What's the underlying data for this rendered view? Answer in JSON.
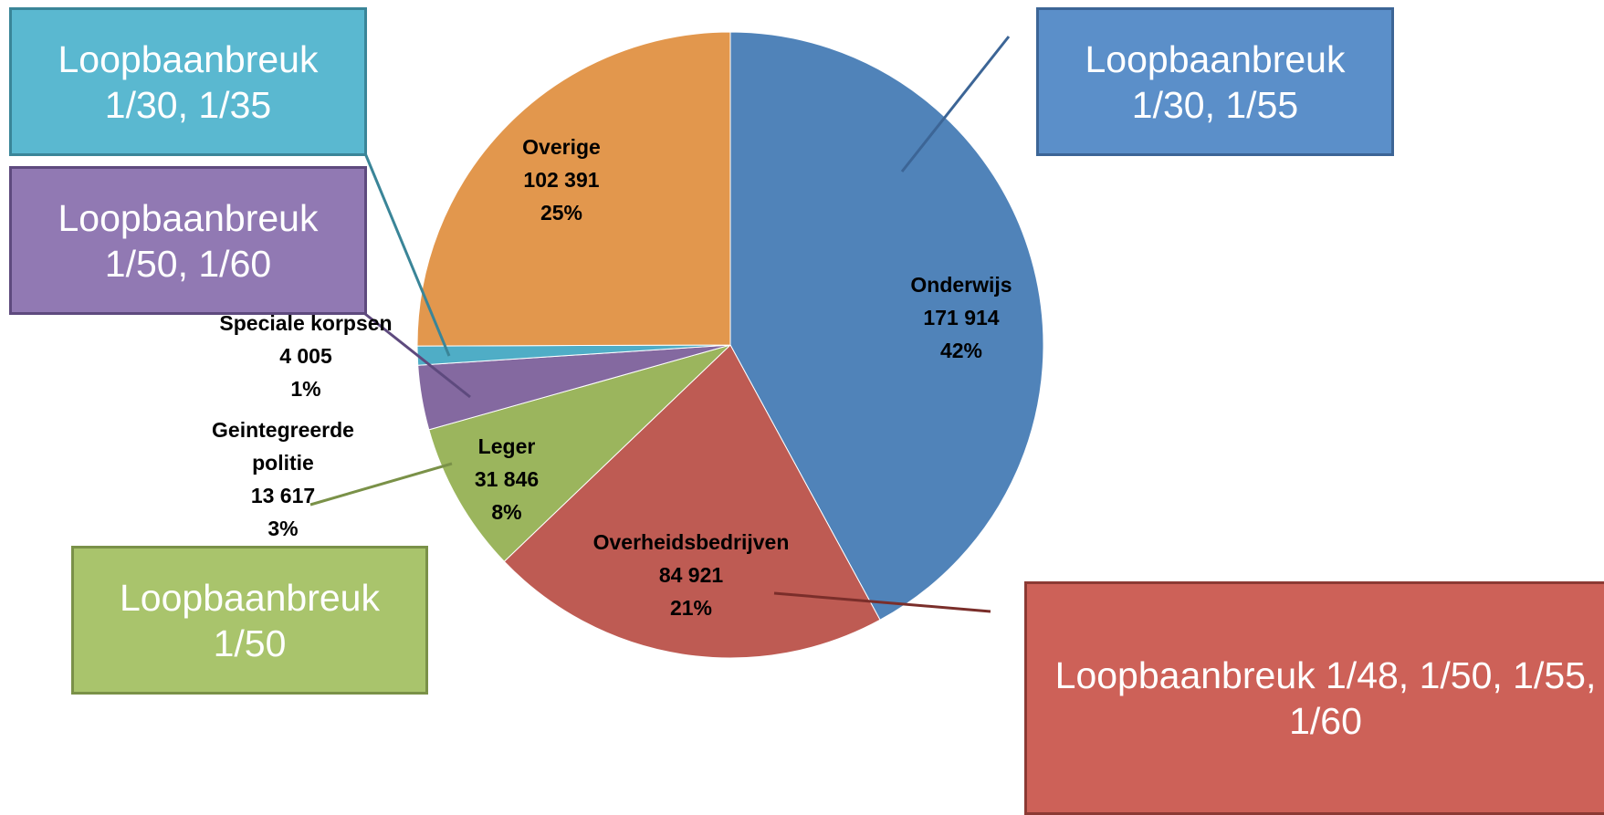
{
  "chart_data": {
    "type": "pie",
    "categories": [
      "Onderwijs",
      "Overheidsbedrijven",
      "Leger",
      "Geintegreerde politie",
      "Speciale korpsen",
      "Overige"
    ],
    "values": [
      171914,
      84921,
      31846,
      13617,
      4005,
      102391
    ],
    "value_labels": [
      "171 914",
      "84 921",
      "31 846",
      "13 617",
      "4 005",
      "102 391"
    ],
    "percentages": [
      42,
      21,
      8,
      3,
      1,
      25
    ],
    "percentage_labels": [
      "42%",
      "21%",
      "8%",
      "3%",
      "1%",
      "25%"
    ],
    "colors": [
      "#5083b9",
      "#be5b53",
      "#9bb55d",
      "#8469a0",
      "#4fadc6",
      "#e2974d"
    ],
    "annotations": [
      {
        "text": "Loopbaanbreuk 1/30, 1/55",
        "color": "#5b8fc9",
        "border": "#3c6596"
      },
      {
        "text": "Loopbaanbreuk 1/48, 1/50, 1/55, 1/60",
        "color": "#cd6158",
        "border": "#8c3a34"
      },
      {
        "text": "Loopbaanbreuk 1/50",
        "color": "#a9c46c",
        "border": "#7a9148"
      },
      {
        "text": "Loopbaanbreuk 1/50, 1/60",
        "color": "#9179b3",
        "border": "#5e4a7e"
      },
      {
        "text": "Loopbaanbreuk 1/30, 1/35",
        "color": "#5ab8d0",
        "border": "#3a8598"
      }
    ]
  }
}
